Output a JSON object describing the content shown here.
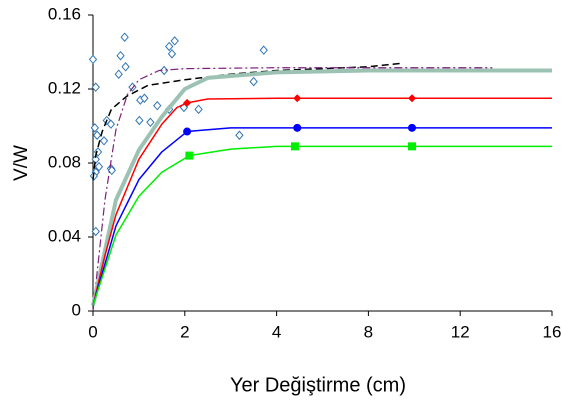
{
  "chart_data": {
    "type": "line",
    "xlabel": "Yer Değiştirme (cm)",
    "ylabel": "V/W",
    "xlim": [
      0,
      16
    ],
    "xticks": [
      0,
      2,
      4,
      8,
      12,
      16
    ],
    "ylim": [
      0,
      0.16
    ],
    "yticks": [
      0,
      0.04,
      0.08,
      0.12,
      0.16
    ],
    "series": [
      {
        "color": "#2e75b6",
        "line": "none",
        "marker": "diamond-open",
        "x": [
          0,
          0.06,
          0.04,
          0.09,
          0.11,
          0.06,
          0.06,
          0.02,
          0.06,
          0.13,
          0.24,
          0.3,
          0.39,
          0.41,
          0.39,
          0.56,
          0.6,
          0.69,
          0.71,
          0.86,
          1.03,
          1.01,
          1.12,
          1.25,
          1.4,
          1.55,
          1.66,
          1.78,
          1.72,
          1.66,
          1.98,
          2.3,
          3.19,
          3.5,
          3.72
        ],
        "values": [
          0.136,
          0.121,
          0.099,
          0.095,
          0.086,
          0.082,
          0.075,
          0.073,
          0.043,
          0.078,
          0.092,
          0.103,
          0.077,
          0.076,
          0.101,
          0.128,
          0.138,
          0.148,
          0.132,
          0.121,
          0.114,
          0.103,
          0.115,
          0.102,
          0.111,
          0.13,
          0.143,
          0.146,
          0.139,
          0.109,
          0.11,
          0.109,
          0.095,
          0.124,
          0.141
        ]
      },
      {
        "color": "#000000",
        "line": "dashed",
        "width": 1.5,
        "marker": "none",
        "x": [
          0,
          0.06,
          0.2,
          0.4,
          0.73,
          1.2,
          2,
          3,
          4,
          6,
          8,
          9.5
        ],
        "values": [
          0.071,
          0.084,
          0.097,
          0.109,
          0.116,
          0.122,
          0.125,
          0.128,
          0.13,
          0.131,
          0.132,
          0.134
        ]
      },
      {
        "color": "#7b1f7b",
        "line": "dashdot",
        "width": 1.2,
        "marker": "none",
        "x": [
          0,
          0.26,
          0.5,
          0.75,
          1,
          1.44,
          2,
          4,
          8,
          13.4
        ],
        "values": [
          0,
          0.06,
          0.098,
          0.117,
          0.125,
          0.13,
          0.131,
          0.1315,
          0.1315,
          0.1315
        ]
      },
      {
        "color": "#9cc2b4",
        "line": "solid",
        "width": 4,
        "marker": "none",
        "x": [
          0,
          0.5,
          1,
          1.5,
          2,
          2.5,
          3,
          4,
          8,
          16
        ],
        "values": [
          0.003,
          0.06,
          0.087,
          0.105,
          0.12,
          0.126,
          0.127,
          0.129,
          0.13,
          0.13
        ]
      },
      {
        "color": "#ff0000",
        "line": "solid",
        "width": 1.5,
        "marker": "none",
        "x": [
          0,
          0.26,
          0.5,
          1,
          1.5,
          1.83,
          2.05,
          2.5,
          4,
          4.9,
          9.9,
          16
        ],
        "values": [
          0.003,
          0.03,
          0.052,
          0.082,
          0.101,
          0.11,
          0.1125,
          0.1146,
          0.115,
          0.115,
          0.115,
          0.115
        ]
      },
      {
        "color": "#ff0000",
        "line": "none",
        "marker": "diamond",
        "x": [
          2.05,
          4.9,
          9.9
        ],
        "values": [
          0.1125,
          0.115,
          0.115
        ]
      },
      {
        "color": "#0000ff",
        "line": "solid",
        "width": 1.5,
        "marker": "none",
        "x": [
          0,
          0.5,
          1,
          1.5,
          2.05,
          2.5,
          3,
          4.9,
          9.9,
          16
        ],
        "values": [
          0.003,
          0.046,
          0.071,
          0.086,
          0.097,
          0.098,
          0.099,
          0.099,
          0.099,
          0.099
        ]
      },
      {
        "color": "#0000ff",
        "line": "none",
        "marker": "circle",
        "x": [
          2.05,
          4.9,
          9.9
        ],
        "values": [
          0.097,
          0.099,
          0.099
        ]
      },
      {
        "color": "#00ee00",
        "line": "solid",
        "width": 1.5,
        "marker": "none",
        "x": [
          0,
          0.5,
          1,
          1.5,
          2.1,
          3,
          4,
          4.8,
          9.9,
          16
        ],
        "values": [
          0.003,
          0.041,
          0.062,
          0.075,
          0.084,
          0.0875,
          0.089,
          0.089,
          0.089,
          0.089
        ]
      },
      {
        "color": "#00ee00",
        "line": "none",
        "marker": "square",
        "x": [
          2.1,
          4.8,
          9.9
        ],
        "values": [
          0.084,
          0.089,
          0.089
        ]
      }
    ]
  }
}
